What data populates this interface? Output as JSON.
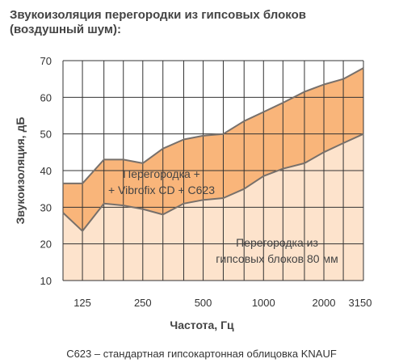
{
  "title_line1": "Звукоизоляция перегородки из гипсовых блоков",
  "title_line2": "(воздушный шум):",
  "footnote": "C623 – стандартная гипсокартонная облицовка KNAUF",
  "colors": {
    "lower_fill": "#fde3cc",
    "upper_fill": "#f9b57a",
    "curve": "#77706b",
    "grid": "#333333"
  },
  "chart_data": {
    "type": "area",
    "xlabel": "Частота, Гц",
    "ylabel": "Звукоизоляция, дБ",
    "ylim": [
      10,
      70
    ],
    "y_ticks": [
      10,
      20,
      30,
      40,
      50,
      60,
      70
    ],
    "x_scale": "log",
    "xlim": [
      100,
      3150
    ],
    "x_tick_labels": [
      "125",
      "250",
      "500",
      "1000",
      "2000",
      "3150"
    ],
    "x_tick_values": [
      125,
      250,
      500,
      1000,
      2000,
      3150
    ],
    "x": [
      100,
      125,
      160,
      200,
      250,
      315,
      400,
      500,
      630,
      800,
      1000,
      1250,
      1600,
      2000,
      2500,
      3150
    ],
    "grid": true,
    "series": [
      {
        "name": "Перегородка из гипсовых блоков 80 мм",
        "label_lines": [
          "Перегородка из",
          "гипсовых блоков 80 мм"
        ],
        "values": [
          28.5,
          23.5,
          31,
          30.5,
          29.5,
          28,
          31,
          32,
          32.5,
          35,
          38.5,
          40.5,
          42,
          45,
          47.5,
          50
        ]
      },
      {
        "name": "Перегородка + Vibrofix CD + C623",
        "label_lines": [
          "Перегородка +",
          "+ Vibrofix CD + C623"
        ],
        "values": [
          36.5,
          36.5,
          43,
          43,
          42,
          46,
          48.5,
          49.5,
          50,
          53.5,
          56,
          58.5,
          61.5,
          63.5,
          65,
          68
        ]
      }
    ]
  }
}
